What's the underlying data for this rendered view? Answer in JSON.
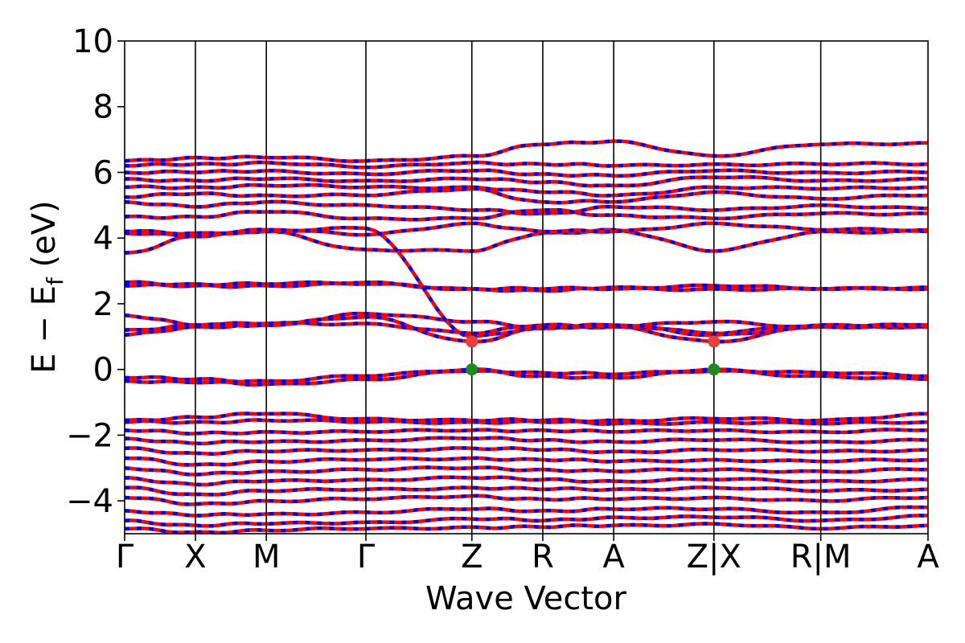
{
  "chart_data": {
    "type": "line",
    "xlabel": "Wave Vector",
    "ylabel": "E − E_f (eV)",
    "ylabel_parts": {
      "pre": "E − E",
      "sub": "f",
      "post": " (eV)"
    },
    "ylim": [
      -5,
      10
    ],
    "yticks": [
      -4,
      -2,
      0,
      2,
      4,
      6,
      8,
      10
    ],
    "ytick_labels": [
      "−4",
      "−2",
      "0",
      "2",
      "4",
      "6",
      "8",
      "10"
    ],
    "grid": false,
    "k_path_fraction_positions": [
      0,
      0.0881,
      0.1764,
      0.3003,
      0.4322,
      0.5205,
      0.6088,
      0.7335,
      0.8665,
      1
    ],
    "k_labels": [
      "Γ",
      "X",
      "M",
      "Γ",
      "Z",
      "R",
      "A",
      "Z|X",
      "R|M",
      "A"
    ],
    "series_colors": {
      "spin_up": "#ff0000",
      "spin_down": "#0000ff"
    },
    "band_line_color": "#ff0000",
    "overlay_dash_color": "#0000ff",
    "markers": [
      {
        "name": "CBM",
        "k_index": 4,
        "energy": 0.85,
        "color": "#e8403a"
      },
      {
        "name": "VBM",
        "k_index": 4,
        "energy": 0.0,
        "color": "#1a8c1a"
      },
      {
        "name": "CBM",
        "k_index": 7,
        "energy": 0.85,
        "color": "#e8403a"
      },
      {
        "name": "VBM",
        "k_index": 7,
        "energy": 0.0,
        "color": "#1a8c1a"
      }
    ],
    "bands": [
      [
        -4.85,
        -4.95,
        -4.9,
        -4.85,
        -4.8,
        -4.8,
        -4.75,
        -4.7,
        -4.85,
        -4.75
      ],
      [
        -4.6,
        -4.75,
        -4.7,
        -4.65,
        -4.55,
        -4.6,
        -4.5,
        -4.5,
        -4.6,
        -4.45
      ],
      [
        -4.3,
        -4.45,
        -4.4,
        -4.35,
        -4.25,
        -4.3,
        -4.25,
        -4.25,
        -4.35,
        -4.2
      ],
      [
        -3.9,
        -4.1,
        -4.0,
        -3.95,
        -3.85,
        -3.95,
        -3.95,
        -3.9,
        -4.0,
        -3.9
      ],
      [
        -3.6,
        -3.8,
        -3.7,
        -3.65,
        -3.6,
        -3.65,
        -3.65,
        -3.6,
        -3.7,
        -3.65
      ],
      [
        -3.3,
        -3.5,
        -3.4,
        -3.35,
        -3.3,
        -3.35,
        -3.4,
        -3.35,
        -3.4,
        -3.35
      ],
      [
        -3.0,
        -3.2,
        -3.1,
        -3.05,
        -3.0,
        -3.05,
        -3.1,
        -3.05,
        -3.1,
        -3.05
      ],
      [
        -2.7,
        -2.9,
        -2.8,
        -2.75,
        -2.7,
        -2.75,
        -2.8,
        -2.75,
        -2.8,
        -2.75
      ],
      [
        -2.4,
        -2.55,
        -2.5,
        -2.45,
        -2.4,
        -2.45,
        -2.5,
        -2.45,
        -2.5,
        -2.45
      ],
      [
        -2.1,
        -2.25,
        -2.2,
        -2.15,
        -2.1,
        -2.15,
        -2.2,
        -2.15,
        -2.2,
        -2.15
      ],
      [
        -1.85,
        -1.95,
        -1.9,
        -1.9,
        -1.85,
        -1.85,
        -1.9,
        -1.85,
        -1.9,
        -1.85
      ],
      [
        -1.6,
        -1.6,
        -1.55,
        -1.6,
        -1.6,
        -1.6,
        -1.65,
        -1.6,
        -1.65,
        -1.6
      ],
      [
        -1.55,
        -1.45,
        -1.35,
        -1.5,
        -1.55,
        -1.55,
        -1.55,
        -1.5,
        -1.55,
        -1.35
      ],
      [
        -0.35,
        -0.4,
        -0.45,
        -0.3,
        -0.05,
        -0.2,
        -0.25,
        -0.05,
        -0.2,
        -0.3
      ],
      [
        -0.25,
        -0.3,
        -0.35,
        -0.2,
        0.0,
        -0.1,
        -0.15,
        0.0,
        -0.1,
        -0.2
      ],
      [
        1.05,
        1.3,
        1.35,
        1.6,
        0.85,
        1.25,
        1.3,
        0.85,
        1.3,
        1.3
      ],
      [
        1.2,
        1.35,
        1.4,
        1.4,
        1.1,
        1.35,
        1.35,
        1.1,
        1.35,
        1.35
      ],
      [
        1.65,
        1.35,
        1.35,
        1.7,
        1.45,
        1.3,
        1.3,
        1.45,
        1.3,
        1.3
      ],
      [
        2.55,
        2.55,
        2.55,
        2.6,
        2.45,
        2.4,
        2.45,
        2.45,
        2.45,
        2.45
      ],
      [
        2.65,
        2.6,
        2.6,
        2.65,
        2.45,
        2.45,
        2.5,
        2.55,
        2.45,
        2.5
      ],
      [
        3.55,
        4.05,
        4.2,
        3.65,
        3.6,
        4.15,
        4.25,
        3.6,
        4.2,
        4.2
      ],
      [
        4.15,
        4.05,
        4.25,
        4.3,
        1.0,
        1.3,
        1.35,
        1.05,
        1.3,
        1.35
      ],
      [
        4.2,
        4.15,
        4.25,
        4.1,
        4.45,
        4.2,
        4.2,
        4.45,
        4.25,
        4.25
      ],
      [
        4.65,
        4.65,
        4.8,
        4.6,
        4.6,
        4.85,
        4.7,
        4.6,
        4.75,
        4.75
      ],
      [
        5.1,
        4.95,
        5.1,
        5.0,
        4.85,
        4.75,
        4.95,
        4.85,
        5.0,
        4.9
      ],
      [
        5.25,
        5.35,
        5.3,
        5.3,
        5.5,
        5.1,
        5.1,
        5.4,
        5.2,
        5.3
      ],
      [
        5.55,
        5.55,
        5.6,
        5.55,
        5.55,
        5.4,
        5.3,
        5.55,
        5.5,
        5.55
      ],
      [
        5.8,
        5.75,
        5.8,
        5.75,
        5.8,
        5.7,
        5.6,
        5.85,
        5.75,
        5.8
      ],
      [
        6.0,
        6.0,
        6.05,
        5.95,
        6.05,
        5.95,
        5.9,
        6.05,
        6.0,
        6.0
      ],
      [
        6.2,
        6.25,
        6.3,
        6.15,
        6.3,
        6.25,
        6.2,
        6.25,
        6.25,
        6.25
      ],
      [
        6.35,
        6.45,
        6.45,
        6.35,
        6.5,
        6.85,
        6.95,
        6.5,
        6.85,
        6.9
      ]
    ]
  }
}
